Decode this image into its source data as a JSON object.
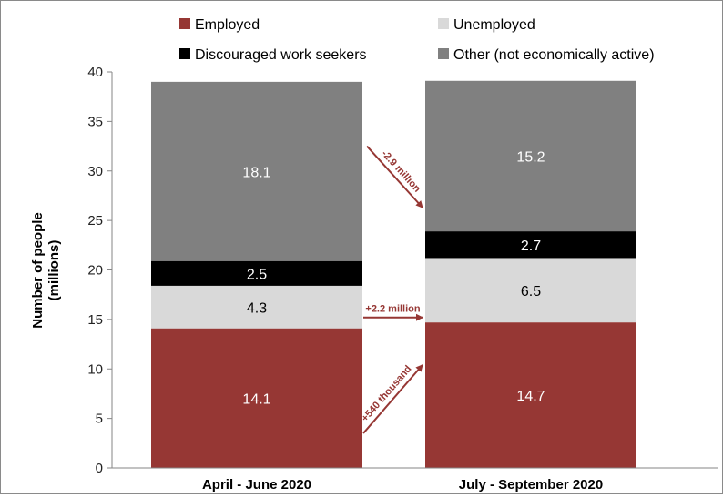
{
  "chart_data": {
    "type": "bar",
    "stacked": true,
    "categories": [
      "April - June 2020",
      "July - September 2020"
    ],
    "series": [
      {
        "name": "Employed",
        "values": [
          14.1,
          14.7
        ],
        "color": "#963734",
        "label_color": "#ffffff"
      },
      {
        "name": "Unemployed",
        "values": [
          4.3,
          6.5
        ],
        "color": "#d9d9d9",
        "label_color": "#000000"
      },
      {
        "name": "Discouraged work seekers",
        "values": [
          2.5,
          2.7
        ],
        "color": "#000000",
        "label_color": "#ffffff"
      },
      {
        "name": "Other (not economically active)",
        "values": [
          18.1,
          15.2
        ],
        "color": "#808080",
        "label_color": "#ffffff"
      }
    ],
    "ylabel": [
      "Number of people",
      "(millions)"
    ],
    "ylim": [
      0,
      40
    ],
    "yticks": [
      0,
      5,
      10,
      15,
      20,
      25,
      30,
      35,
      40
    ],
    "legend_position": "top",
    "grid": false,
    "annotations": [
      {
        "text": "+540 thousand",
        "series": "Employed"
      },
      {
        "text": "+2.2 million",
        "series": "Unemployed"
      },
      {
        "text": "-2.9 million",
        "series": "Other (not economically active)"
      }
    ],
    "annotation_color": "#963734"
  }
}
